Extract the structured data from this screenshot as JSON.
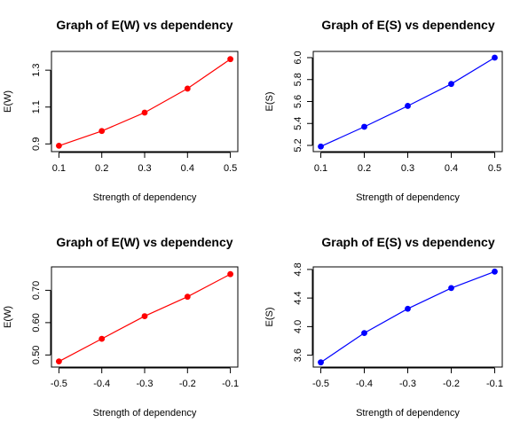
{
  "chart_data": [
    {
      "type": "line",
      "title": "Graph of E(W) vs dependency",
      "xlabel": "Strength of dependency",
      "ylabel": "E(W)",
      "xlim": [
        0.1,
        0.5
      ],
      "ylim": [
        0.88,
        1.38
      ],
      "xticks": [
        "0.1",
        "0.2",
        "0.3",
        "0.4",
        "0.5"
      ],
      "xtick_values": [
        0.1,
        0.2,
        0.3,
        0.4,
        0.5
      ],
      "yticks": [
        "0.9",
        "1.1",
        "1.3"
      ],
      "ytick_values": [
        0.9,
        1.1,
        1.3
      ],
      "color": "#ff0000",
      "x": [
        0.1,
        0.2,
        0.3,
        0.4,
        0.5
      ],
      "y": [
        0.89,
        0.97,
        1.07,
        1.2,
        1.36
      ]
    },
    {
      "type": "line",
      "title": "Graph of E(S) vs dependency",
      "xlabel": "Strength of dependency",
      "ylabel": "E(S)",
      "xlim": [
        0.1,
        0.5
      ],
      "ylim": [
        5.18,
        6.02
      ],
      "xticks": [
        "0.1",
        "0.2",
        "0.3",
        "0.4",
        "0.5"
      ],
      "xtick_values": [
        0.1,
        0.2,
        0.3,
        0.4,
        0.5
      ],
      "yticks": [
        "5.2",
        "5.4",
        "5.6",
        "5.8",
        "6.0"
      ],
      "ytick_values": [
        5.2,
        5.4,
        5.6,
        5.8,
        6.0
      ],
      "color": "#0000ff",
      "x": [
        0.1,
        0.2,
        0.3,
        0.4,
        0.5
      ],
      "y": [
        5.19,
        5.37,
        5.56,
        5.76,
        6.0
      ]
    },
    {
      "type": "line",
      "title": "Graph of E(W) vs dependency",
      "xlabel": "Strength of dependency",
      "ylabel": "E(W)",
      "xlim": [
        -0.5,
        -0.1
      ],
      "ylim": [
        0.475,
        0.76
      ],
      "xticks": [
        "-0.5",
        "-0.4",
        "-0.3",
        "-0.2",
        "-0.1"
      ],
      "xtick_values": [
        -0.5,
        -0.4,
        -0.3,
        -0.2,
        -0.1
      ],
      "yticks": [
        "0.50",
        "0.60",
        "0.70"
      ],
      "ytick_values": [
        0.5,
        0.6,
        0.7
      ],
      "color": "#ff0000",
      "x": [
        -0.5,
        -0.4,
        -0.3,
        -0.2,
        -0.1
      ],
      "y": [
        0.48,
        0.55,
        0.62,
        0.68,
        0.75
      ]
    },
    {
      "type": "line",
      "title": "Graph of E(S) vs dependency",
      "xlabel": "Strength of dependency",
      "ylabel": "E(S)",
      "xlim": [
        -0.5,
        -0.1
      ],
      "ylim": [
        3.49,
        4.78
      ],
      "xticks": [
        "-0.5",
        "-0.4",
        "-0.3",
        "-0.2",
        "-0.1"
      ],
      "xtick_values": [
        -0.5,
        -0.4,
        -0.3,
        -0.2,
        -0.1
      ],
      "yticks": [
        "3.6",
        "4.0",
        "4.4",
        "4.8"
      ],
      "ytick_values": [
        3.6,
        4.0,
        4.4,
        4.8
      ],
      "color": "#0000ff",
      "x": [
        -0.5,
        -0.4,
        -0.3,
        -0.2,
        -0.1
      ],
      "y": [
        3.5,
        3.91,
        4.25,
        4.54,
        4.77
      ]
    }
  ]
}
